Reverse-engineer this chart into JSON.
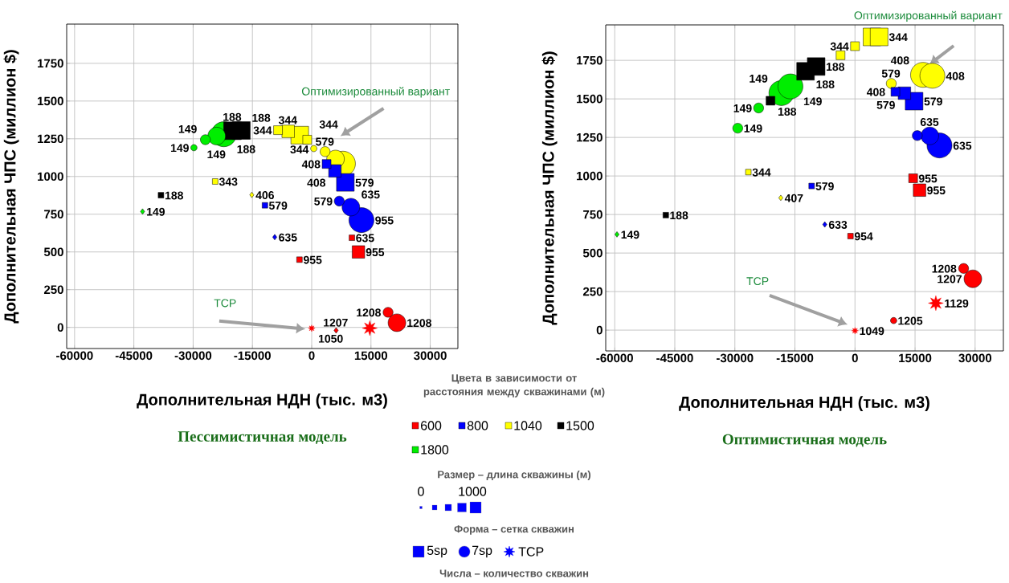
{
  "chart_data": [
    {
      "type": "bubble",
      "subtitle": "Пессимистичная модель",
      "xlabel": "Дополнительная НДН (тыс. м3)",
      "ylabel": "Дополнительная ЧПС (миллион $)",
      "legend_title": "Цвета в зависимости от расстояния между скважинами (м)",
      "legend": "bottom",
      "xlim": [
        -62000,
        37000
      ],
      "ylim": [
        -140,
        2010
      ],
      "xticks": [
        -60000,
        -45000,
        -30000,
        -15000,
        0,
        15000,
        30000
      ],
      "yticks": [
        0,
        250,
        500,
        750,
        1000,
        1250,
        1500,
        1750
      ],
      "grid": true,
      "annotations": [
        "Оптимизированный вариант",
        "ТСР",
        {
          "text": "955",
          "x": -3090,
          "y": 449
        },
        {
          "text": "635",
          "x": 10180,
          "y": 594
        },
        {
          "text": "955",
          "x": 11830,
          "y": 500
        },
        {
          "text": "579",
          "x": -11830,
          "y": 809
        },
        {
          "text": "408",
          "x": 3770,
          "y": 1083
        },
        {
          "text": "408",
          "x": 5880,
          "y": 1037
        },
        {
          "text": "579",
          "x": 8520,
          "y": 961
        },
        {
          "text": "343",
          "x": -24420,
          "y": 967
        },
        {
          "text": "344",
          "x": -8520,
          "y": 1307
        },
        {
          "text": "344",
          "x": -5950,
          "y": 1299
        },
        {
          "text": "344",
          "x": -3020,
          "y": 1274
        },
        {
          "text": "344",
          "x": -1130,
          "y": 1244
        },
        {
          "text": "188",
          "x": -38140,
          "y": 876
        },
        {
          "text": "188",
          "x": -20050,
          "y": 1303
        },
        {
          "text": "188",
          "x": -17790,
          "y": 1305
        },
        {
          "text": "149",
          "x": -29800,
          "y": 1191
        },
        {
          "text": "149",
          "x": -26900,
          "y": 1244
        },
        {
          "text": "149",
          "x": -24050,
          "y": 1268
        },
        {
          "text": "188",
          "x": -22240,
          "y": 1280
        },
        {
          "text": "1208",
          "x": 19330,
          "y": 100
        },
        {
          "text": "1208",
          "x": 21570,
          "y": 31
        },
        {
          "text": "579",
          "x": 6980,
          "y": 837
        },
        {
          "text": "635",
          "x": 9920,
          "y": 797
        },
        {
          "text": "955",
          "x": 12590,
          "y": 711
        },
        {
          "text": "579",
          "x": 3390,
          "y": 1165
        },
        {
          "text": "149",
          "x": -42800,
          "y": 768
        },
        {
          "text": "406",
          "x": -15150,
          "y": 878
        },
        {
          "text": "635",
          "x": -9350,
          "y": 598
        },
        {
          "text": "1207",
          "x": 6180,
          "y": -20
        },
        {
          "text": "1050",
          "x": 0,
          "y": -6
        },
        "Размер – длина скважины (м)",
        "0",
        "1000",
        "Форма – сетка скважин",
        "5sp",
        "7sp",
        "TCP",
        "Числа – количество скважин"
      ],
      "series": [
        {
          "name": "600",
          "color": "#ff0000",
          "marker": "square",
          "x": [
            -3090,
            10180,
            11830
          ],
          "values": [
            449,
            594,
            500
          ],
          "sizes": [
            0.1,
            0.1,
            0.5
          ]
        },
        {
          "name": "800",
          "color": "#0000ff",
          "marker": "square",
          "x": [
            -11830,
            3770,
            5880,
            8520
          ],
          "values": [
            809,
            1083,
            1037,
            961
          ],
          "sizes": [
            0.1,
            0.25,
            0.5,
            1
          ]
        },
        {
          "name": "1040",
          "color": "#ffff00",
          "marker": "square",
          "x": [
            -24420,
            -8520,
            -5950,
            -3020,
            -1130
          ],
          "values": [
            967,
            1307,
            1299,
            1274,
            1244
          ],
          "sizes": [
            0.1,
            0.25,
            0.5,
            1,
            0.25
          ]
        },
        {
          "name": "1500",
          "color": "#000000",
          "marker": "square",
          "x": [
            -38140,
            -20050,
            -17790
          ],
          "values": [
            876,
            1303,
            1305
          ],
          "sizes": [
            0.1,
            1,
            1
          ]
        },
        {
          "name": "1800",
          "color": "#00ee00",
          "marker": "circle",
          "x": [
            -29800,
            -26900,
            -24050,
            -22240
          ],
          "values": [
            1191,
            1244,
            1268,
            1280
          ],
          "sizes": [
            0.1,
            0.25,
            0.5,
            1
          ]
        },
        {
          "color": "#ff0000",
          "marker": "circle",
          "x": [
            19330,
            21570
          ],
          "values": [
            100,
            31
          ],
          "sizes": [
            0.25,
            0.5
          ]
        },
        {
          "color": "#0000ff",
          "marker": "circle",
          "x": [
            6980,
            9920,
            12590
          ],
          "values": [
            837,
            797,
            711
          ],
          "sizes": [
            0.25,
            0.5,
            1
          ]
        },
        {
          "color": "#ffff00",
          "marker": "circle",
          "x": [
            530,
            3390,
            6030,
            7910
          ],
          "values": [
            1185,
            1165,
            1116,
            1085
          ],
          "sizes": [
            0.1,
            0.25,
            0.5,
            1
          ]
        },
        {
          "colors": [
            "#00ee00",
            "#ffff00",
            "#0000ff",
            "#ff0000"
          ],
          "marker": "diamond",
          "x": [
            -42800,
            -15150,
            -9350,
            6180
          ],
          "values": [
            768,
            878,
            598,
            -20
          ],
          "sizes": [
            0.05,
            0.05,
            0.05,
            0.05
          ]
        },
        {
          "color": "#ff0000",
          "marker": "star",
          "x": [
            0,
            14700
          ],
          "values": [
            -6,
            -5
          ],
          "sizes": [
            0.05,
            0.25
          ]
        }
      ]
    },
    {
      "type": "bubble",
      "subtitle": "Оптимистичная модель",
      "xlabel": "Дополнительная НДН (тыс. м3)",
      "ylabel": "Дополнительная ЧПС (миллион $)",
      "xlim": [
        -62250,
        37060
      ],
      "ylim": [
        -135,
        1980
      ],
      "xticks": [
        -60000,
        -45000,
        -30000,
        -15000,
        0,
        15000,
        30000
      ],
      "yticks": [
        0,
        250,
        500,
        750,
        1000,
        1250,
        1500,
        1750
      ],
      "grid": true,
      "annotations": [
        "Оптимизированный вариант",
        "ТСР",
        {
          "text": "955",
          "x": 14520,
          "y": 985
        },
        {
          "text": "955",
          "x": 16120,
          "y": 908
        },
        {
          "text": "954",
          "x": -1120,
          "y": 610
        },
        {
          "text": "579",
          "x": -10830,
          "y": 935
        },
        {
          "text": "408",
          "x": 10100,
          "y": 1546
        },
        {
          "text": "579",
          "x": 12350,
          "y": 1537
        },
        {
          "text": "579",
          "x": 14760,
          "y": 1485
        },
        {
          "text": "344",
          "x": -26630,
          "y": 1025
        },
        {
          "text": "344",
          "x": 0,
          "y": 1842
        },
        {
          "text": "344",
          "x": 6020,
          "y": 1902
        },
        {
          "text": "188",
          "x": -47250,
          "y": 746
        },
        {
          "text": "188",
          "x": -21100,
          "y": 1488
        },
        {
          "text": "188",
          "x": -12350,
          "y": 1679
        },
        {
          "text": "188",
          "x": -9700,
          "y": 1710
        },
        {
          "text": "149",
          "x": -29280,
          "y": 1310
        },
        {
          "text": "149",
          "x": -24060,
          "y": 1441
        },
        {
          "text": "149",
          "x": -18370,
          "y": 1538
        },
        {
          "text": "149",
          "x": -16120,
          "y": 1581
        },
        {
          "text": "1205",
          "x": 9650,
          "y": 62
        },
        {
          "text": "1208",
          "x": 27130,
          "y": 400
        },
        {
          "text": "1207",
          "x": 29440,
          "y": 333
        },
        {
          "text": "635",
          "x": 18690,
          "y": 1260
        },
        {
          "text": "635",
          "x": 21100,
          "y": 1198
        },
        {
          "text": "579",
          "x": 9060,
          "y": 1600
        },
        {
          "text": "408",
          "x": 16990,
          "y": 1656
        },
        {
          "text": "408",
          "x": 19330,
          "y": 1650
        },
        {
          "text": "149",
          "x": -59440,
          "y": 621
        },
        {
          "text": "407",
          "x": -18530,
          "y": 858
        },
        {
          "text": "633",
          "x": -7540,
          "y": 685
        },
        {
          "text": "1049",
          "x": 0,
          "y": -4
        },
        {
          "text": "1129",
          "x": 20190,
          "y": 175
        }
      ],
      "series": [
        {
          "color": "#ff0000",
          "marker": "square",
          "x": [
            14520,
            16120,
            -1120
          ],
          "values": [
            985,
            908,
            610
          ],
          "sizes": [
            0.25,
            0.5,
            0.1
          ]
        },
        {
          "color": "#0000ff",
          "marker": "square",
          "x": [
            -10830,
            10100,
            12350,
            14760
          ],
          "values": [
            935,
            1546,
            1537,
            1485
          ],
          "sizes": [
            0.1,
            0.25,
            0.5,
            1
          ]
        },
        {
          "color": "#ffff00",
          "marker": "square",
          "x": [
            -26630,
            -3610,
            0,
            4250,
            6020
          ],
          "values": [
            1025,
            1783,
            1842,
            1902,
            1902
          ],
          "sizes": [
            0.1,
            0.25,
            0.25,
            1,
            1
          ]
        },
        {
          "color": "#000000",
          "marker": "square",
          "x": [
            -47250,
            -21100,
            -12350,
            -9700
          ],
          "values": [
            746,
            1488,
            1679,
            1710
          ],
          "sizes": [
            0.1,
            0.25,
            1,
            1
          ]
        },
        {
          "color": "#00ee00",
          "marker": "circle",
          "x": [
            -29280,
            -24060,
            -18370,
            -16120
          ],
          "values": [
            1310,
            1441,
            1538,
            1581
          ],
          "sizes": [
            0.25,
            0.25,
            1,
            1
          ]
        },
        {
          "color": "#ff0000",
          "marker": "circle",
          "x": [
            9650,
            27130,
            29440
          ],
          "values": [
            62,
            400,
            333
          ],
          "sizes": [
            0.1,
            0.25,
            0.5
          ]
        },
        {
          "color": "#0000ff",
          "marker": "circle",
          "x": [
            15560,
            18690,
            21100
          ],
          "values": [
            1262,
            1260,
            1198
          ],
          "sizes": [
            0.25,
            0.5,
            1
          ]
        },
        {
          "color": "#ffff00",
          "marker": "circle",
          "x": [
            9060,
            16990,
            19330
          ],
          "values": [
            1600,
            1656,
            1650
          ],
          "sizes": [
            0.25,
            1,
            1
          ]
        },
        {
          "colors": [
            "#00ee00",
            "#ffff00",
            "#0000ff"
          ],
          "marker": "diamond",
          "x": [
            -59440,
            -18530,
            -7540
          ],
          "values": [
            621,
            858,
            685
          ],
          "sizes": [
            0.05,
            0.05,
            0.05
          ]
        },
        {
          "color": "#ff0000",
          "marker": "star",
          "x": [
            0,
            20190
          ],
          "values": [
            -4,
            175
          ],
          "sizes": [
            0.05,
            0.25
          ]
        }
      ]
    }
  ]
}
